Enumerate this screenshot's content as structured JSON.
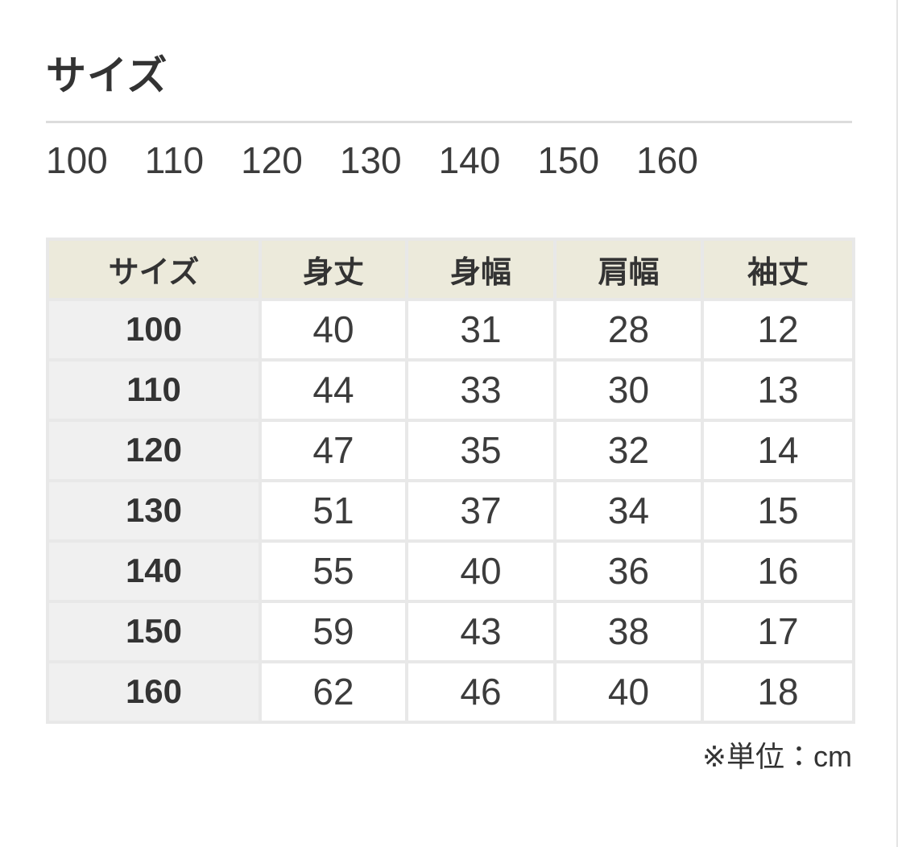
{
  "page": {
    "title": "サイズ",
    "unit_note": "※単位：cm"
  },
  "size_options": [
    "100",
    "110",
    "120",
    "130",
    "140",
    "150",
    "160"
  ],
  "table": {
    "headers": [
      "サイズ",
      "身丈",
      "身幅",
      "肩幅",
      "袖丈"
    ],
    "rows": [
      {
        "size": "100",
        "values": [
          "40",
          "31",
          "28",
          "12"
        ]
      },
      {
        "size": "110",
        "values": [
          "44",
          "33",
          "30",
          "13"
        ]
      },
      {
        "size": "120",
        "values": [
          "47",
          "35",
          "32",
          "14"
        ]
      },
      {
        "size": "130",
        "values": [
          "51",
          "37",
          "34",
          "15"
        ]
      },
      {
        "size": "140",
        "values": [
          "55",
          "40",
          "36",
          "16"
        ]
      },
      {
        "size": "150",
        "values": [
          "59",
          "43",
          "38",
          "17"
        ]
      },
      {
        "size": "160",
        "values": [
          "62",
          "46",
          "40",
          "18"
        ]
      }
    ]
  },
  "colors": {
    "header_background": "#ECEADB",
    "size_column_background": "#F0F0F0",
    "cell_border": "#E8E8E8",
    "divider": "#DCDCDC",
    "text": "#333333"
  }
}
